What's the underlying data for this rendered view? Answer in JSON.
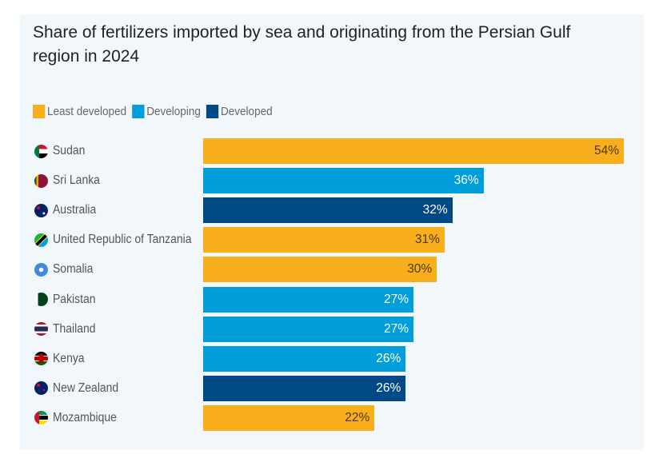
{
  "chart_data": {
    "type": "bar",
    "orientation": "horizontal",
    "title": "Share of fertilizers imported by sea and originating from the Persian Gulf region in 2024",
    "categories": [
      "Sudan",
      "Sri Lanka",
      "Australia",
      "United Republic of Tanzania",
      "Somalia",
      "Pakistan",
      "Thailand",
      "Kenya",
      "New Zealand",
      "Mozambique"
    ],
    "values": [
      54,
      36,
      32,
      31,
      30,
      27,
      27,
      26,
      26,
      22
    ],
    "labels": [
      "54%",
      "36%",
      "32%",
      "31%",
      "30%",
      "27%",
      "27%",
      "26%",
      "26%",
      "22%"
    ],
    "groups": [
      "Least developed",
      "Developing",
      "Developed",
      "Least developed",
      "Least developed",
      "Developing",
      "Developing",
      "Developing",
      "Developed",
      "Least developed"
    ],
    "legend": [
      {
        "name": "Least developed",
        "color": "#f9ae1b"
      },
      {
        "name": "Developing",
        "color": "#009edb"
      },
      {
        "name": "Developed",
        "color": "#004987"
      }
    ],
    "flag_icons": [
      "sudan-flag",
      "sri-lanka-flag",
      "australia-flag",
      "tanzania-flag",
      "somalia-flag",
      "pakistan-flag",
      "thailand-flag",
      "kenya-flag",
      "new-zealand-flag",
      "mozambique-flag"
    ],
    "legend_position": "top-left",
    "grid": false,
    "xlim": [
      0,
      54
    ]
  }
}
